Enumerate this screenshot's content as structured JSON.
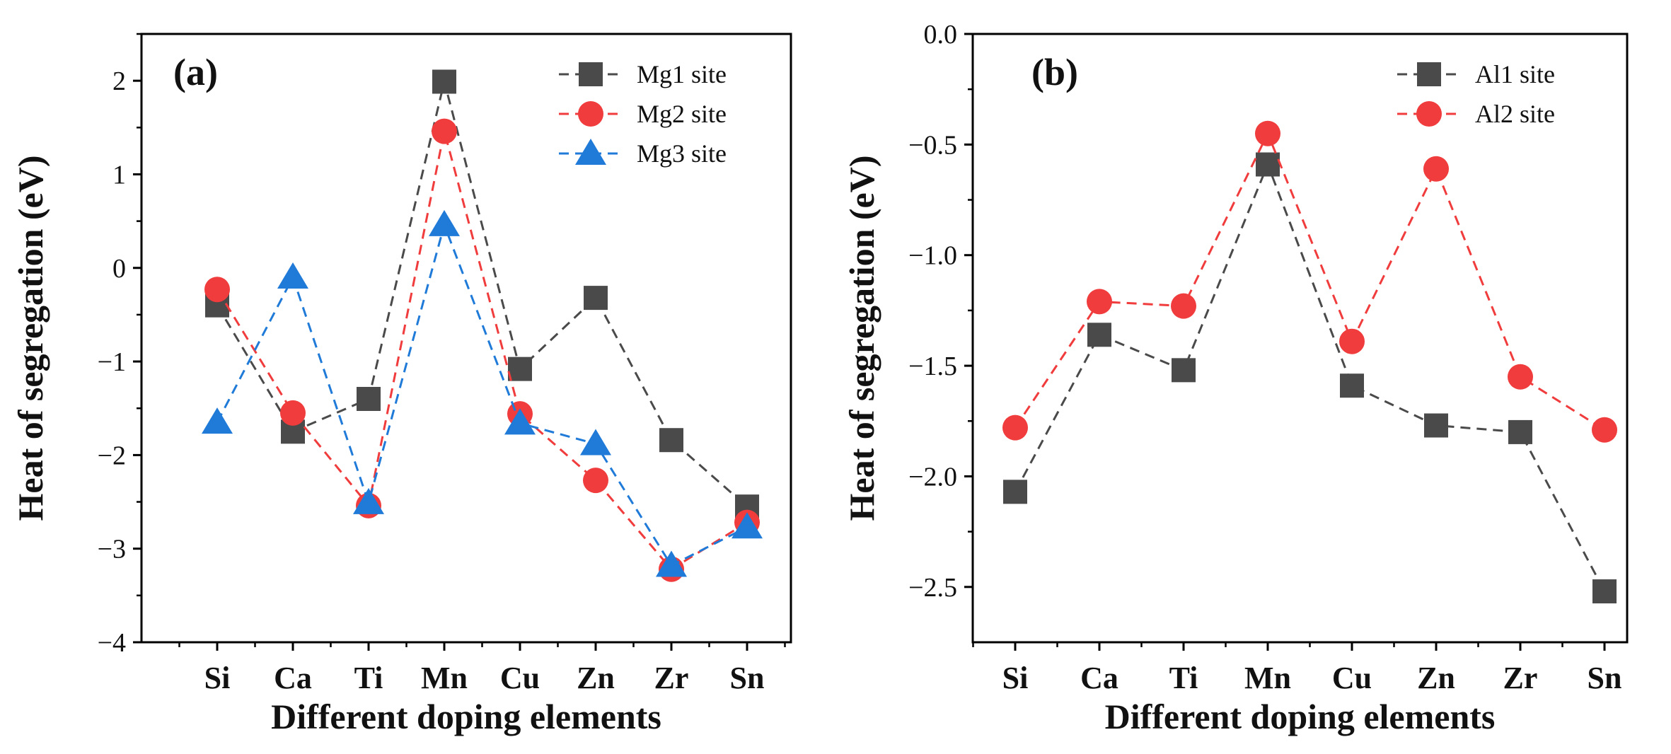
{
  "chart_data": [
    {
      "type": "line",
      "panel_label": "(a)",
      "title": "",
      "xlabel": "Different doping elements",
      "ylabel": "Heat of segregation (eV)",
      "categories": [
        "Si",
        "Ca",
        "Ti",
        "Mn",
        "Cu",
        "Zn",
        "Zr",
        "Sn"
      ],
      "ylim": [
        -4,
        2.5
      ],
      "yticks": [
        -4,
        -3,
        -2,
        -1,
        0,
        1,
        2
      ],
      "ytick_labels": [
        "−4",
        "−3",
        "−2",
        "−1",
        "0",
        "1",
        "2"
      ],
      "grid": false,
      "legend_position": "top-right",
      "series": [
        {
          "name": "Mg1 site",
          "marker": "square",
          "color": "#4a4a4a",
          "line_color": "#4a4a4a",
          "values": [
            -0.4,
            -1.75,
            -1.4,
            1.99,
            -1.08,
            -0.32,
            -1.84,
            -2.55
          ]
        },
        {
          "name": "Mg2 site",
          "marker": "circle",
          "color": "#f03c3c",
          "line_color": "#f03c3c",
          "values": [
            -0.23,
            -1.55,
            -2.54,
            1.46,
            -1.56,
            -2.27,
            -3.22,
            -2.72
          ]
        },
        {
          "name": "Mg3 site",
          "marker": "triangle",
          "color": "#1f7ad8",
          "line_color": "#1f7ad8",
          "values": [
            -1.65,
            -0.1,
            -2.51,
            0.46,
            -1.66,
            -1.88,
            -3.18,
            -2.77
          ]
        }
      ]
    },
    {
      "type": "line",
      "panel_label": "(b)",
      "title": "",
      "xlabel": "Different doping elements",
      "ylabel": "Heat of segregation (eV)",
      "categories": [
        "Si",
        "Ca",
        "Ti",
        "Mn",
        "Cu",
        "Zn",
        "Zr",
        "Sn"
      ],
      "ylim": [
        -2.75,
        0.0
      ],
      "yticks": [
        -2.5,
        -2.0,
        -1.5,
        -1.0,
        -0.5,
        0.0
      ],
      "ytick_labels": [
        "−2.5",
        "−2.0",
        "−1.5",
        "−1.0",
        "−0.5",
        "0.0"
      ],
      "grid": false,
      "legend_position": "top-right",
      "series": [
        {
          "name": "Al1 site",
          "marker": "square",
          "color": "#4a4a4a",
          "line_color": "#4a4a4a",
          "values": [
            -2.07,
            -1.36,
            -1.52,
            -0.59,
            -1.59,
            -1.77,
            -1.8,
            -2.52
          ]
        },
        {
          "name": "Al2 site",
          "marker": "circle",
          "color": "#f03c3c",
          "line_color": "#f03c3c",
          "values": [
            -1.78,
            -1.21,
            -1.23,
            -0.45,
            -1.39,
            -0.61,
            -1.55,
            -1.79
          ]
        }
      ]
    }
  ]
}
